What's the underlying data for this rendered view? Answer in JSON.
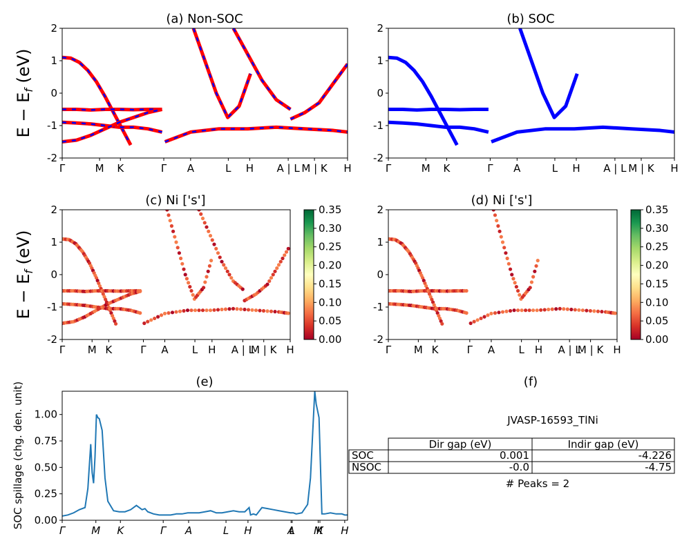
{
  "figure": {
    "background": "#ffffff"
  },
  "panels": {
    "a_title": "(a) Non-SOC",
    "b_title": "(b) SOC",
    "c_title": "(c)  Ni ['s']",
    "d_title": "(d) Ni ['s']",
    "e_title": "(e)",
    "f_title": "(f)",
    "band_ylabel": "E − E_f (eV)",
    "spillage_ylabel": "SOC spillage (chg. den. unit)"
  },
  "kpath": {
    "labels": [
      "Γ",
      "M",
      "K",
      "Γ",
      "A",
      "L",
      "H",
      "A | L",
      "M | K",
      "H"
    ],
    "positions": [
      0,
      0.131,
      0.204,
      0.356,
      0.45,
      0.582,
      0.657,
      0.792,
      0.884,
      1.0
    ]
  },
  "colors": {
    "nonsoc_line": "#ff0000",
    "nonsoc_dash": "#0000ff",
    "soc_line": "#0000ff",
    "spillage_line": "#1f77b4",
    "cmap": [
      "#a50026",
      "#d73027",
      "#f46d43",
      "#fdae61",
      "#fee08b",
      "#ffffbf",
      "#d9ef8b",
      "#a6d96a",
      "#66bd63",
      "#1a9850",
      "#006837"
    ]
  },
  "chart_data": [
    {
      "type": "line",
      "title": "(a) Non-SOC",
      "ylabel": "E − E_f (eV)",
      "ylim": [
        -2,
        2
      ],
      "yticks": [
        -2,
        -1,
        0,
        1,
        2
      ],
      "xticklabels": [
        "Γ",
        "M",
        "K",
        "Γ",
        "A",
        "L",
        "H",
        "A | L",
        "M | K",
        "H"
      ],
      "series": [
        {
          "x": [
            0,
            0.03,
            0.06,
            0.09,
            0.12,
            0.15,
            0.18,
            0.21,
            0.24
          ],
          "y": [
            1.1,
            1.08,
            0.95,
            0.7,
            0.35,
            -0.1,
            -0.6,
            -1.1,
            -1.6
          ]
        },
        {
          "x": [
            0,
            0.05,
            0.1,
            0.15,
            0.2,
            0.25,
            0.3,
            0.35
          ],
          "y": [
            -0.5,
            -0.5,
            -0.52,
            -0.5,
            -0.5,
            -0.51,
            -0.5,
            -0.5
          ]
        },
        {
          "x": [
            0,
            0.05,
            0.1,
            0.15,
            0.2,
            0.25,
            0.3,
            0.35
          ],
          "y": [
            -0.9,
            -0.92,
            -0.95,
            -1.0,
            -1.05,
            -1.05,
            -1.1,
            -1.2
          ]
        },
        {
          "x": [
            0,
            0.05,
            0.1,
            0.15,
            0.2,
            0.25,
            0.3,
            0.35
          ],
          "y": [
            -1.5,
            -1.45,
            -1.3,
            -1.1,
            -0.9,
            -0.75,
            -0.6,
            -0.5
          ]
        },
        {
          "x": [
            0.46,
            0.5,
            0.54,
            0.58,
            0.62,
            0.66
          ],
          "y": [
            2.0,
            1.0,
            0.0,
            -0.75,
            -0.4,
            0.6
          ]
        },
        {
          "x": [
            0.6,
            0.65,
            0.7,
            0.75,
            0.8
          ],
          "y": [
            2.0,
            1.2,
            0.4,
            -0.2,
            -0.5
          ]
        },
        {
          "x": [
            0.36,
            0.45,
            0.55,
            0.65,
            0.75,
            0.85,
            0.95,
            1.0
          ],
          "y": [
            -1.5,
            -1.2,
            -1.1,
            -1.1,
            -1.05,
            -1.1,
            -1.15,
            -1.2
          ]
        },
        {
          "x": [
            0.8,
            0.85,
            0.9,
            0.95,
            1.0
          ],
          "y": [
            -0.8,
            -0.6,
            -0.3,
            0.3,
            0.9
          ]
        }
      ]
    },
    {
      "type": "line",
      "title": "(b) SOC",
      "ylim": [
        -2,
        2
      ],
      "yticks": [
        -2,
        -1,
        0,
        1,
        2
      ],
      "xticklabels": [
        "Γ",
        "M",
        "K",
        "Γ",
        "A",
        "L",
        "H",
        "A | L",
        "M | K",
        "H"
      ],
      "series": [
        {
          "x": [
            0,
            0.03,
            0.06,
            0.09,
            0.12,
            0.15,
            0.18,
            0.21,
            0.24
          ],
          "y": [
            1.1,
            1.08,
            0.95,
            0.7,
            0.35,
            -0.1,
            -0.6,
            -1.1,
            -1.6
          ]
        },
        {
          "x": [
            0,
            0.05,
            0.1,
            0.15,
            0.2,
            0.25,
            0.3,
            0.35
          ],
          "y": [
            -0.5,
            -0.5,
            -0.52,
            -0.5,
            -0.5,
            -0.51,
            -0.5,
            -0.5
          ]
        },
        {
          "x": [
            0,
            0.05,
            0.1,
            0.15,
            0.2,
            0.25,
            0.3,
            0.35
          ],
          "y": [
            -0.9,
            -0.92,
            -0.95,
            -1.0,
            -1.05,
            -1.05,
            -1.1,
            -1.2
          ]
        },
        {
          "x": [
            0.46,
            0.5,
            0.54,
            0.58,
            0.62,
            0.66
          ],
          "y": [
            2.0,
            1.0,
            0.0,
            -0.75,
            -0.4,
            0.6
          ]
        },
        {
          "x": [
            0.36,
            0.45,
            0.55,
            0.65,
            0.75,
            0.85,
            0.95,
            1.0
          ],
          "y": [
            -1.5,
            -1.2,
            -1.1,
            -1.1,
            -1.05,
            -1.1,
            -1.15,
            -1.2
          ]
        }
      ]
    },
    {
      "type": "scatter",
      "title": "(c)  Ni ['s']",
      "ylabel": "E − E_f (eV)",
      "ylim": [
        -2,
        2
      ],
      "colorbar": {
        "min": 0,
        "max": 0.35,
        "ticks": [
          "0.00",
          "0.05",
          "0.10",
          "0.15",
          "0.20",
          "0.25",
          "0.30",
          "0.35"
        ]
      },
      "xticklabels": [
        "Γ",
        "M",
        "K",
        "Γ",
        "A",
        "L",
        "H",
        "A | L",
        "M | K",
        "H"
      ]
    },
    {
      "type": "scatter",
      "title": "(d) Ni ['s']",
      "ylim": [
        -2,
        2
      ],
      "colorbar": {
        "min": 0,
        "max": 0.35,
        "ticks": [
          "0.00",
          "0.05",
          "0.10",
          "0.15",
          "0.20",
          "0.25",
          "0.30",
          "0.35"
        ]
      },
      "xticklabels": [
        "Γ",
        "M",
        "K",
        "Γ",
        "A",
        "L",
        "H",
        "A | L",
        "M | K",
        "H"
      ]
    },
    {
      "type": "line",
      "title": "(e)",
      "ylabel": "SOC spillage (chg. den. unit)",
      "ylim": [
        0,
        1.22
      ],
      "yticks": [
        "0.00",
        "0.25",
        "0.50",
        "0.75",
        "1.00"
      ],
      "xticklabels": [
        "Γ",
        "M",
        "K",
        "Γ",
        "A",
        "L",
        "H",
        "A",
        "L",
        "M",
        "K",
        "H"
      ],
      "series": [
        {
          "x": [
            0,
            0.02,
            0.04,
            0.06,
            0.08,
            0.09,
            0.1,
            0.105,
            0.11,
            0.115,
            0.12,
            0.125,
            0.13,
            0.14,
            0.15,
            0.16,
            0.18,
            0.2,
            0.22,
            0.24,
            0.26,
            0.27,
            0.28,
            0.29,
            0.3,
            0.32,
            0.34,
            0.36,
            0.38,
            0.4,
            0.42,
            0.44,
            0.46,
            0.48,
            0.5,
            0.52,
            0.53,
            0.54,
            0.56,
            0.58,
            0.6,
            0.62,
            0.64,
            0.655,
            0.66,
            0.67,
            0.68,
            0.7,
            0.72,
            0.74,
            0.76,
            0.78,
            0.8,
            0.81,
            0.82,
            0.84,
            0.86,
            0.87,
            0.88,
            0.885,
            0.89,
            0.9,
            0.91,
            0.92,
            0.94,
            0.96,
            0.98,
            0.99,
            1.0
          ],
          "y": [
            0.04,
            0.05,
            0.07,
            0.1,
            0.12,
            0.3,
            0.72,
            0.45,
            0.35,
            0.6,
            1.0,
            0.97,
            0.96,
            0.85,
            0.4,
            0.18,
            0.09,
            0.08,
            0.08,
            0.1,
            0.14,
            0.12,
            0.1,
            0.11,
            0.08,
            0.06,
            0.05,
            0.05,
            0.05,
            0.06,
            0.06,
            0.07,
            0.07,
            0.07,
            0.08,
            0.09,
            0.08,
            0.07,
            0.07,
            0.08,
            0.09,
            0.08,
            0.08,
            0.12,
            0.05,
            0.06,
            0.05,
            0.12,
            0.11,
            0.1,
            0.09,
            0.08,
            0.07,
            0.07,
            0.06,
            0.07,
            0.15,
            0.4,
            0.95,
            1.22,
            1.1,
            0.97,
            0.06,
            0.06,
            0.07,
            0.06,
            0.06,
            0.05,
            0.05
          ]
        }
      ]
    },
    {
      "type": "table",
      "title": "(f)",
      "caption": "JVASP-16593_TlNi",
      "columns": [
        "",
        "Dir gap (eV)",
        "Indir gap (eV)"
      ],
      "rows": [
        [
          "SOC",
          "0.001",
          "-4.226"
        ],
        [
          "NSOC",
          "-0.0",
          "-4.75"
        ]
      ],
      "footer": "# Peaks = 2"
    }
  ]
}
